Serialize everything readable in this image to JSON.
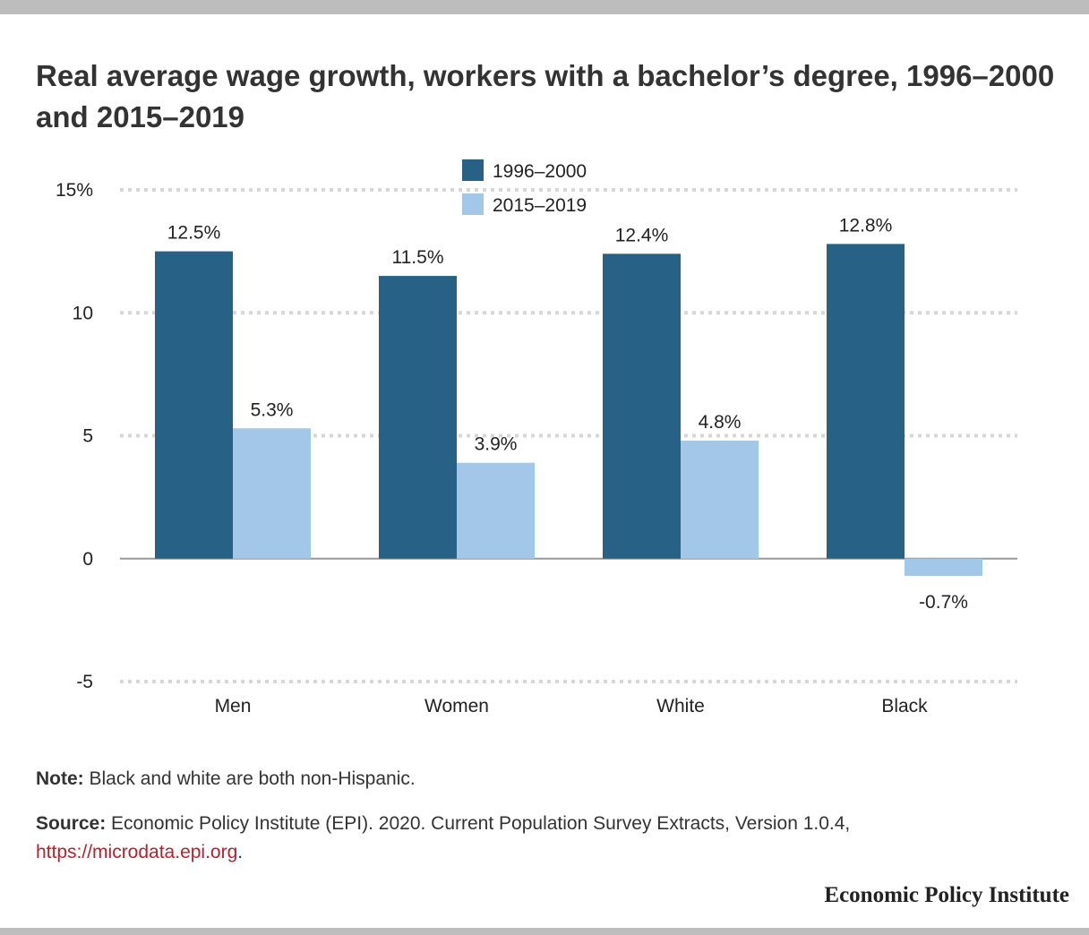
{
  "title": "Real average wage growth, workers with a bachelor’s degree, 1996–2000 and 2015–2019",
  "colors": {
    "series1": "#276286",
    "series2": "#a3c7e8",
    "grid": "#d7d7d7",
    "zero_line": "#999999",
    "link": "#b5222f"
  },
  "chart_data": {
    "type": "bar",
    "categories": [
      "Men",
      "Women",
      "White",
      "Black"
    ],
    "series": [
      {
        "name": "1996–2000",
        "values": [
          12.5,
          11.5,
          12.4,
          12.8
        ],
        "labels": [
          "12.5%",
          "11.5%",
          "12.4%",
          "12.8%"
        ]
      },
      {
        "name": "2015–2019",
        "values": [
          5.3,
          3.9,
          4.8,
          -0.7
        ],
        "labels": [
          "5.3%",
          "3.9%",
          "4.8%",
          "-0.7%"
        ]
      }
    ],
    "yticks": [
      15,
      10,
      5,
      0,
      -5
    ],
    "ytick_labels": [
      "15%",
      "10",
      "5",
      "0",
      "-5"
    ],
    "ylim": [
      -5,
      15
    ],
    "grid": true,
    "legend_position": "top-center"
  },
  "note": {
    "label": "Note:",
    "text": " Black and white are both non-Hispanic."
  },
  "source": {
    "label": "Source:",
    "text": " Economic Policy Institute (EPI). 2020. Current Population Survey Extracts, Version 1.0.4, ",
    "link": "https://microdata.epi.org",
    "end": "."
  },
  "brand": "Economic Policy Institute"
}
